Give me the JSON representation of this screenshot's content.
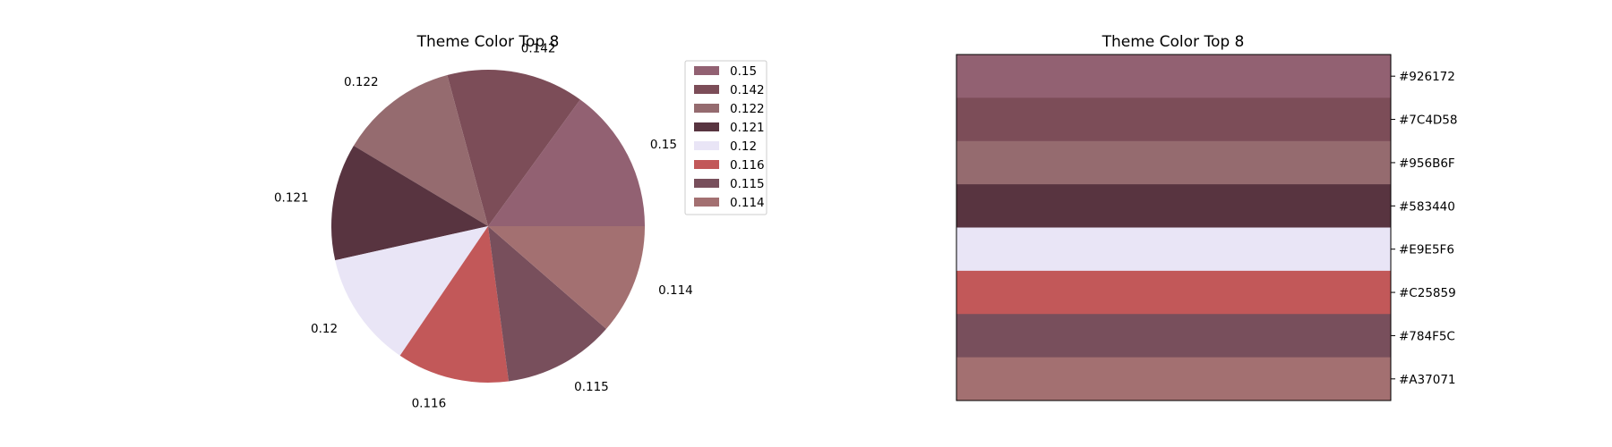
{
  "chart_data": [
    {
      "type": "pie",
      "title": "Theme Color Top 8",
      "values": [
        0.15,
        0.142,
        0.122,
        0.121,
        0.12,
        0.116,
        0.115,
        0.114
      ],
      "labels": [
        "0.15",
        "0.142",
        "0.122",
        "0.121",
        "0.12",
        "0.116",
        "0.115",
        "0.114"
      ],
      "colors": [
        "#926172",
        "#7C4D58",
        "#956B6F",
        "#583440",
        "#E9E5F6",
        "#C25859",
        "#784F5C",
        "#A37071"
      ],
      "start_angle_deg": 0,
      "direction": "counterclockwise",
      "legend": {
        "placement": "right",
        "entries": [
          "0.15",
          "0.142",
          "0.122",
          "0.121",
          "0.12",
          "0.116",
          "0.115",
          "0.114"
        ]
      }
    },
    {
      "type": "bar",
      "orientation": "horizontal-stacked-swatches",
      "title": "Theme Color Top 8",
      "categories": [
        "#926172",
        "#7C4D58",
        "#956B6F",
        "#583440",
        "#E9E5F6",
        "#C25859",
        "#784F5C",
        "#A37071"
      ],
      "colors": [
        "#926172",
        "#7C4D58",
        "#956B6F",
        "#583440",
        "#E9E5F6",
        "#C25859",
        "#784F5C",
        "#A37071"
      ],
      "tick_side": "right"
    }
  ]
}
